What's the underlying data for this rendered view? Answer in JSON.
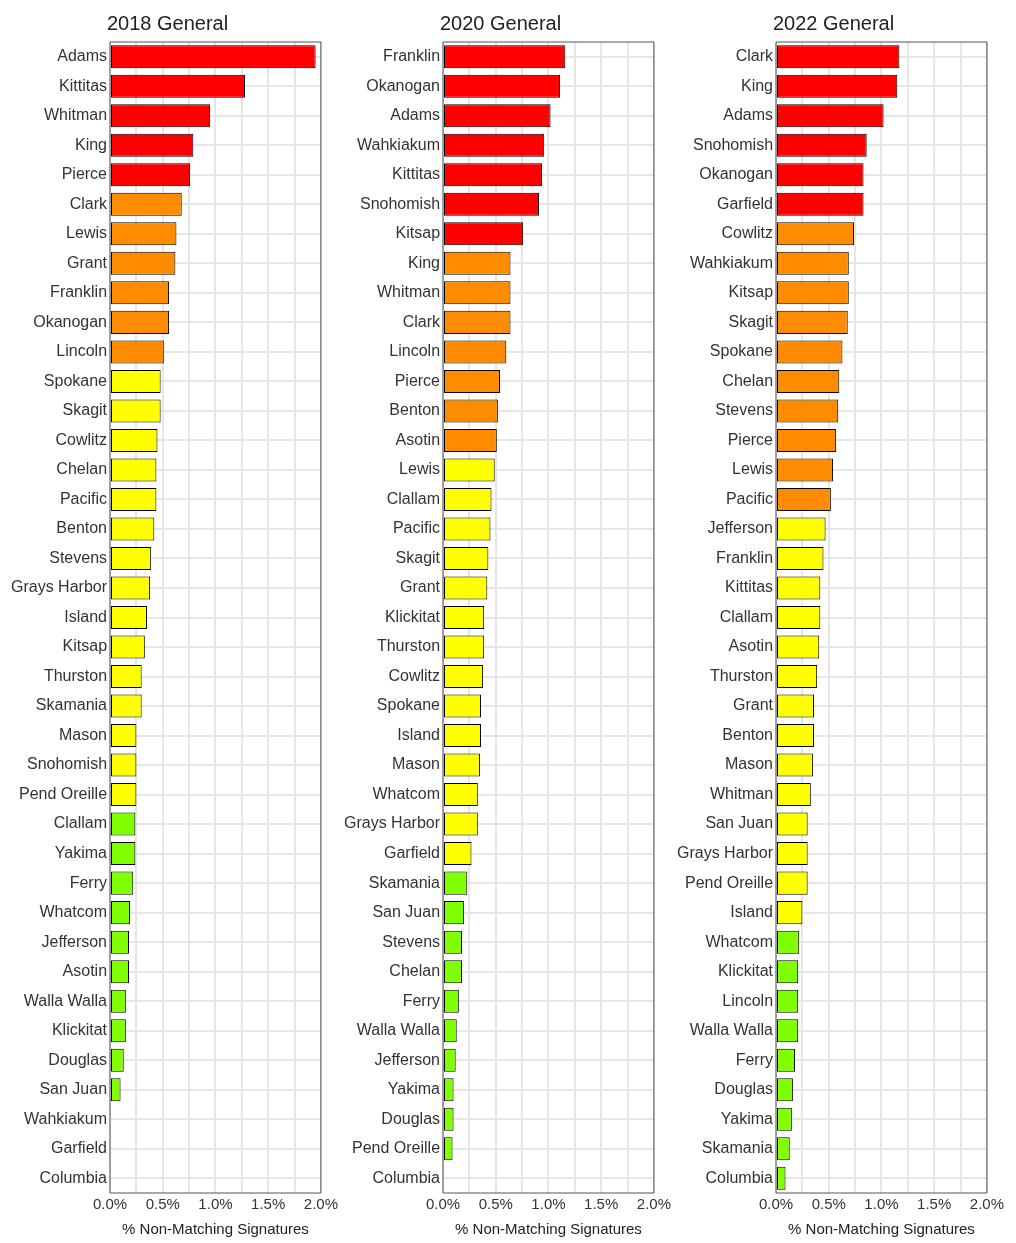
{
  "chart_data": [
    {
      "type": "bar",
      "orientation": "horizontal",
      "title": "2018 General",
      "xlabel": "% Non-Matching Signatures",
      "grid": true,
      "legend": false,
      "xlim": [
        0,
        2.0
      ],
      "xticks": [
        {
          "value": 0,
          "label": "0.0%"
        },
        {
          "value": 0.25,
          "label": null
        },
        {
          "value": 0.5,
          "label": "0.5%"
        },
        {
          "value": 0.75,
          "label": null
        },
        {
          "value": 1.0,
          "label": "1.0%"
        },
        {
          "value": 1.25,
          "label": null
        },
        {
          "value": 1.5,
          "label": "1.5%"
        },
        {
          "value": 1.75,
          "label": null
        },
        {
          "value": 2.0,
          "label": "2.0%"
        }
      ],
      "categories": [
        "Adams",
        "Kittitas",
        "Whitman",
        "King",
        "Pierce",
        "Clark",
        "Lewis",
        "Grant",
        "Franklin",
        "Okanogan",
        "Lincoln",
        "Spokane",
        "Skagit",
        "Cowlitz",
        "Chelan",
        "Pacific",
        "Benton",
        "Stevens",
        "Grays Harbor",
        "Island",
        "Kitsap",
        "Thurston",
        "Skamania",
        "Mason",
        "Snohomish",
        "Pend Oreille",
        "Clallam",
        "Yakima",
        "Ferry",
        "Whatcom",
        "Jefferson",
        "Asotin",
        "Walla Walla",
        "Klickitat",
        "Douglas",
        "San Juan",
        "Wahkiakum",
        "Garfield",
        "Columbia"
      ],
      "values": [
        1.95,
        1.28,
        0.95,
        0.79,
        0.76,
        0.68,
        0.63,
        0.62,
        0.56,
        0.56,
        0.51,
        0.48,
        0.48,
        0.45,
        0.44,
        0.44,
        0.42,
        0.39,
        0.38,
        0.35,
        0.33,
        0.3,
        0.3,
        0.25,
        0.25,
        0.25,
        0.24,
        0.24,
        0.22,
        0.19,
        0.18,
        0.18,
        0.15,
        0.15,
        0.13,
        0.1,
        0,
        0,
        0
      ],
      "colors": [
        "#ff0000",
        "#ff0000",
        "#ff0000",
        "#ff0000",
        "#ff0000",
        "#ff8c00",
        "#ff8c00",
        "#ff8c00",
        "#ff8c00",
        "#ff8c00",
        "#ff8c00",
        "#ffff00",
        "#ffff00",
        "#ffff00",
        "#ffff00",
        "#ffff00",
        "#ffff00",
        "#ffff00",
        "#ffff00",
        "#ffff00",
        "#ffff00",
        "#ffff00",
        "#ffff00",
        "#ffff00",
        "#ffff00",
        "#ffff00",
        "#7fff00",
        "#7fff00",
        "#7fff00",
        "#7fff00",
        "#7fff00",
        "#7fff00",
        "#7fff00",
        "#7fff00",
        "#7fff00",
        "#7fff00",
        "#7fff00",
        "#7fff00",
        "#7fff00"
      ]
    },
    {
      "type": "bar",
      "orientation": "horizontal",
      "title": "2020 General",
      "xlabel": "% Non-Matching Signatures",
      "grid": true,
      "legend": false,
      "xlim": [
        0,
        2.0
      ],
      "xticks": [
        {
          "value": 0,
          "label": "0.0%"
        },
        {
          "value": 0.25,
          "label": null
        },
        {
          "value": 0.5,
          "label": "0.5%"
        },
        {
          "value": 0.75,
          "label": null
        },
        {
          "value": 1.0,
          "label": "1.0%"
        },
        {
          "value": 1.25,
          "label": null
        },
        {
          "value": 1.5,
          "label": "1.5%"
        },
        {
          "value": 1.75,
          "label": null
        },
        {
          "value": 2.0,
          "label": "2.0%"
        }
      ],
      "categories": [
        "Franklin",
        "Okanogan",
        "Adams",
        "Wahkiakum",
        "Kittitas",
        "Snohomish",
        "Kitsap",
        "King",
        "Whitman",
        "Clark",
        "Lincoln",
        "Pierce",
        "Benton",
        "Asotin",
        "Lewis",
        "Clallam",
        "Pacific",
        "Skagit",
        "Grant",
        "Klickitat",
        "Thurston",
        "Cowlitz",
        "Spokane",
        "Island",
        "Mason",
        "Whatcom",
        "Grays Harbor",
        "Garfield",
        "Skamania",
        "San Juan",
        "Stevens",
        "Chelan",
        "Ferry",
        "Walla Walla",
        "Jefferson",
        "Yakima",
        "Douglas",
        "Pend Oreille",
        "Columbia"
      ],
      "values": [
        1.16,
        1.11,
        1.02,
        0.96,
        0.94,
        0.91,
        0.76,
        0.64,
        0.64,
        0.64,
        0.6,
        0.54,
        0.52,
        0.51,
        0.49,
        0.46,
        0.45,
        0.43,
        0.42,
        0.39,
        0.39,
        0.38,
        0.36,
        0.36,
        0.35,
        0.33,
        0.33,
        0.27,
        0.23,
        0.2,
        0.18,
        0.18,
        0.15,
        0.13,
        0.12,
        0.1,
        0.1,
        0.09,
        0
      ],
      "colors": [
        "#ff0000",
        "#ff0000",
        "#ff0000",
        "#ff0000",
        "#ff0000",
        "#ff0000",
        "#ff0000",
        "#ff8c00",
        "#ff8c00",
        "#ff8c00",
        "#ff8c00",
        "#ff8c00",
        "#ff8c00",
        "#ff8c00",
        "#ffff00",
        "#ffff00",
        "#ffff00",
        "#ffff00",
        "#ffff00",
        "#ffff00",
        "#ffff00",
        "#ffff00",
        "#ffff00",
        "#ffff00",
        "#ffff00",
        "#ffff00",
        "#ffff00",
        "#ffff00",
        "#7fff00",
        "#7fff00",
        "#7fff00",
        "#7fff00",
        "#7fff00",
        "#7fff00",
        "#7fff00",
        "#7fff00",
        "#7fff00",
        "#7fff00",
        "#7fff00"
      ]
    },
    {
      "type": "bar",
      "orientation": "horizontal",
      "title": "2022 General",
      "xlabel": "% Non-Matching Signatures",
      "grid": true,
      "legend": false,
      "xlim": [
        0,
        2.0
      ],
      "xticks": [
        {
          "value": 0,
          "label": "0.0%"
        },
        {
          "value": 0.25,
          "label": null
        },
        {
          "value": 0.5,
          "label": "0.5%"
        },
        {
          "value": 0.75,
          "label": null
        },
        {
          "value": 1.0,
          "label": "1.0%"
        },
        {
          "value": 1.25,
          "label": null
        },
        {
          "value": 1.5,
          "label": "1.5%"
        },
        {
          "value": 1.75,
          "label": null
        },
        {
          "value": 2.0,
          "label": "2.0%"
        }
      ],
      "categories": [
        "Clark",
        "King",
        "Adams",
        "Snohomish",
        "Okanogan",
        "Garfield",
        "Cowlitz",
        "Wahkiakum",
        "Kitsap",
        "Skagit",
        "Spokane",
        "Chelan",
        "Stevens",
        "Pierce",
        "Lewis",
        "Pacific",
        "Jefferson",
        "Franklin",
        "Kittitas",
        "Clallam",
        "Asotin",
        "Thurston",
        "Grant",
        "Benton",
        "Mason",
        "Whitman",
        "San Juan",
        "Grays Harbor",
        "Pend Oreille",
        "Island",
        "Whatcom",
        "Klickitat",
        "Lincoln",
        "Walla Walla",
        "Ferry",
        "Douglas",
        "Yakima",
        "Skamania",
        "Columbia"
      ],
      "values": [
        1.17,
        1.15,
        1.02,
        0.86,
        0.83,
        0.83,
        0.74,
        0.69,
        0.69,
        0.68,
        0.63,
        0.6,
        0.59,
        0.57,
        0.54,
        0.52,
        0.47,
        0.45,
        0.42,
        0.42,
        0.41,
        0.39,
        0.36,
        0.36,
        0.35,
        0.33,
        0.3,
        0.3,
        0.3,
        0.25,
        0.22,
        0.21,
        0.21,
        0.21,
        0.18,
        0.16,
        0.15,
        0.13,
        0.09
      ],
      "colors": [
        "#ff0000",
        "#ff0000",
        "#ff0000",
        "#ff0000",
        "#ff0000",
        "#ff0000",
        "#ff8c00",
        "#ff8c00",
        "#ff8c00",
        "#ff8c00",
        "#ff8c00",
        "#ff8c00",
        "#ff8c00",
        "#ff8c00",
        "#ff8c00",
        "#ff8c00",
        "#ffff00",
        "#ffff00",
        "#ffff00",
        "#ffff00",
        "#ffff00",
        "#ffff00",
        "#ffff00",
        "#ffff00",
        "#ffff00",
        "#ffff00",
        "#ffff00",
        "#ffff00",
        "#ffff00",
        "#ffff00",
        "#7fff00",
        "#7fff00",
        "#7fff00",
        "#7fff00",
        "#7fff00",
        "#7fff00",
        "#7fff00",
        "#7fff00",
        "#7fff00"
      ]
    }
  ]
}
